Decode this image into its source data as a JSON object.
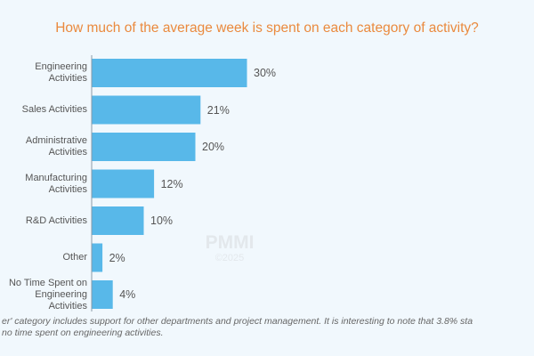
{
  "chart_data": {
    "type": "bar",
    "orientation": "horizontal",
    "title": "How much of the average week is spent on each category of activity?",
    "categories": [
      "Engineering Activities",
      "Sales Activities",
      "Administrative Activities",
      "Manufacturing Activities",
      "R&D Activities",
      "Other",
      "No Time Spent on Engineering Activities"
    ],
    "values": [
      30,
      21,
      20,
      12,
      10,
      2,
      4
    ],
    "value_labels": [
      "30%",
      "21%",
      "20%",
      "12%",
      "10%",
      "2%",
      "4%"
    ],
    "unit": "%",
    "xlim": [
      0,
      30
    ],
    "grid": false,
    "bar_color": "#58b8e9",
    "title_color": "#ea8a3e"
  },
  "watermark": {
    "brand": "PMMI",
    "copyright": "©2025"
  },
  "footnote": {
    "line1": "er' category includes support for other departments and project management. It is interesting to note that 3.8% sta",
    "line2": "no time spent on engineering activities."
  }
}
